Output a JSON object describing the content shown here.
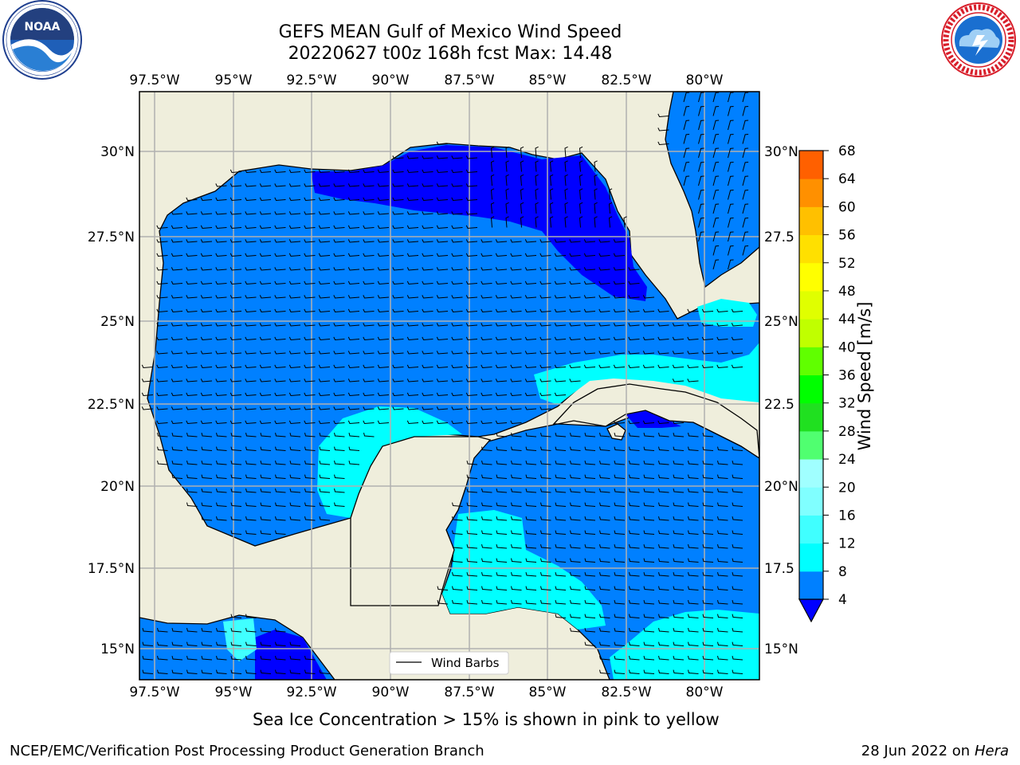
{
  "titles": {
    "line1": "GEFS MEAN Gulf of Mexico Wind Speed",
    "line2": "20220627 t00z 168h fcst   Max: 14.48"
  },
  "logos": {
    "left": "noaa-logo",
    "right": "nws-logo"
  },
  "lon_ticks": [
    "97.5°W",
    "95°W",
    "92.5°W",
    "90°W",
    "87.5°W",
    "85°W",
    "82.5°W",
    "80°W"
  ],
  "lat_ticks_left": [
    "30°N",
    "27.5°N",
    "25°N",
    "22.5°N",
    "20°N",
    "17.5°N",
    "15°N"
  ],
  "lat_ticks_right": [
    "30°N",
    "27.5",
    "25°N",
    "22.5",
    "20°N",
    "17.5",
    "15°N"
  ],
  "legend": {
    "label": "Wind Barbs"
  },
  "colorbar": {
    "label": "Wind Speed [m/s]",
    "ticks": [
      "4",
      "8",
      "12",
      "16",
      "20",
      "24",
      "28",
      "32",
      "36",
      "40",
      "44",
      "48",
      "52",
      "56",
      "60",
      "64",
      "68"
    ],
    "colors": [
      "#0080ff",
      "#00ffff",
      "#40ffff",
      "#80ffff",
      "#a0ffff",
      "#50ff70",
      "#20e020",
      "#00ff00",
      "#60ff00",
      "#c0ff00",
      "#e0ff00",
      "#ffff00",
      "#ffe000",
      "#ffc000",
      "#ff9000",
      "#ff6000",
      "#ff3000",
      "#ff0000"
    ],
    "under_color": "#0000ff"
  },
  "colors": {
    "land": "#efeedc",
    "speed_0_4": "#0000ff",
    "speed_4_8": "#0080ff",
    "speed_8_12": "#00ffff",
    "speed_12_16": "#40ffff"
  },
  "footnote": "Sea Ice Concentration > 15% is shown in pink to yellow",
  "footer": {
    "branch": "NCEP/EMC/Verification Post Processing Product Generation Branch",
    "date": "28 Jun 2022 on",
    "system": "Hera"
  }
}
